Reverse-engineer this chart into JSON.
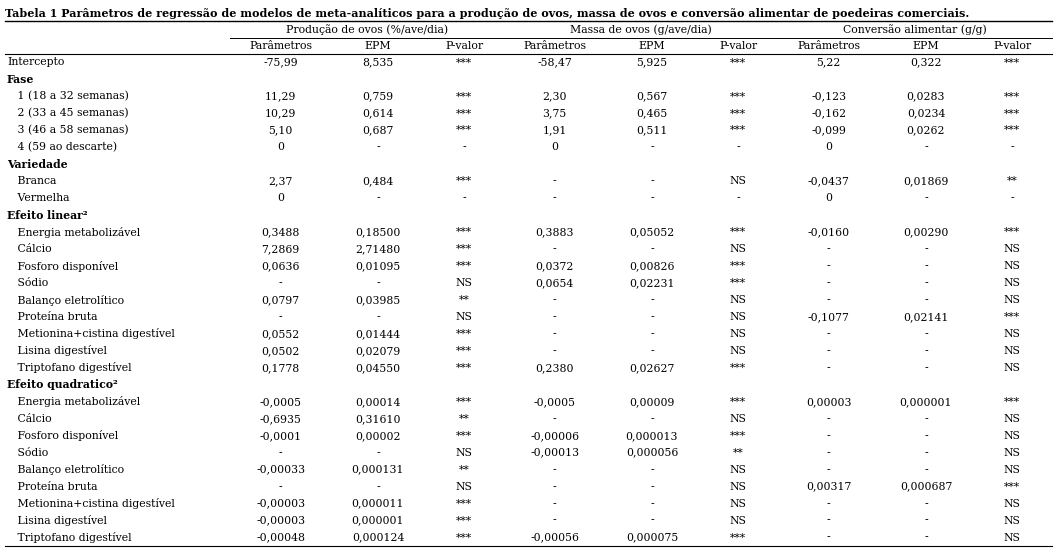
{
  "title": "Tabela 1 Parâmetros de regressão de modelos de meta-analíticos para a produção de ovos, massa de ovos e conversão alimentar de poedeiras comerciais.",
  "col_groups": [
    {
      "label": "Produção de ovos (%/ave/dia)"
    },
    {
      "label": "Massa de ovos (g/ave/dia)"
    },
    {
      "label": "Conversão alimentar (g/g)"
    }
  ],
  "sub_headers": [
    "Parâmetros",
    "EPM",
    "P-valor",
    "Parâmetros",
    "EPM",
    "P-valor",
    "Parâmetros",
    "EPM",
    "P-valor"
  ],
  "rows": [
    {
      "label": "Intercepto",
      "indent": 0,
      "values": [
        "-75,99",
        "8,535",
        "***",
        "-58,47",
        "5,925",
        "***",
        "5,22",
        "0,322",
        "***"
      ],
      "header": false
    },
    {
      "label": "Fase",
      "indent": 0,
      "values": [
        "",
        "",
        "",
        "",
        "",
        "",
        "",
        "",
        ""
      ],
      "header": true
    },
    {
      "label": "   1 (18 a 32 semanas)",
      "indent": 0,
      "values": [
        "11,29",
        "0,759",
        "***",
        "2,30",
        "0,567",
        "***",
        "-0,123",
        "0,0283",
        "***"
      ],
      "header": false
    },
    {
      "label": "   2 (33 a 45 semanas)",
      "indent": 0,
      "values": [
        "10,29",
        "0,614",
        "***",
        "3,75",
        "0,465",
        "***",
        "-0,162",
        "0,0234",
        "***"
      ],
      "header": false
    },
    {
      "label": "   3 (46 a 58 semanas)",
      "indent": 0,
      "values": [
        "5,10",
        "0,687",
        "***",
        "1,91",
        "0,511",
        "***",
        "-0,099",
        "0,0262",
        "***"
      ],
      "header": false
    },
    {
      "label": "   4 (59 ao descarte)",
      "indent": 0,
      "values": [
        "0",
        "-",
        "-",
        "0",
        "-",
        "-",
        "0",
        "-",
        "-"
      ],
      "header": false
    },
    {
      "label": "Variedade",
      "indent": 0,
      "values": [
        "",
        "",
        "",
        "",
        "",
        "",
        "",
        "",
        ""
      ],
      "header": true
    },
    {
      "label": "   Branca",
      "indent": 0,
      "values": [
        "2,37",
        "0,484",
        "***",
        "-",
        "-",
        "NS",
        "-0,0437",
        "0,01869",
        "**"
      ],
      "header": false
    },
    {
      "label": "   Vermelha",
      "indent": 0,
      "values": [
        "0",
        "-",
        "-",
        "-",
        "-",
        "-",
        "0",
        "-",
        "-"
      ],
      "header": false
    },
    {
      "label": "Efeito linear²",
      "indent": 0,
      "values": [
        "",
        "",
        "",
        "",
        "",
        "",
        "",
        "",
        ""
      ],
      "header": true
    },
    {
      "label": "   Energia metabolizável",
      "indent": 0,
      "values": [
        "0,3488",
        "0,18500",
        "***",
        "0,3883",
        "0,05052",
        "***",
        "-0,0160",
        "0,00290",
        "***"
      ],
      "header": false
    },
    {
      "label": "   Cálcio",
      "indent": 0,
      "values": [
        "7,2869",
        "2,71480",
        "***",
        "-",
        "-",
        "NS",
        "-",
        "-",
        "NS"
      ],
      "header": false
    },
    {
      "label": "   Fosforo disponível",
      "indent": 0,
      "values": [
        "0,0636",
        "0,01095",
        "***",
        "0,0372",
        "0,00826",
        "***",
        "-",
        "-",
        "NS"
      ],
      "header": false
    },
    {
      "label": "   Sódio",
      "indent": 0,
      "values": [
        "-",
        "-",
        "NS",
        "0,0654",
        "0,02231",
        "***",
        "-",
        "-",
        "NS"
      ],
      "header": false
    },
    {
      "label": "   Balanço eletrolítico",
      "indent": 0,
      "values": [
        "0,0797",
        "0,03985",
        "**",
        "-",
        "-",
        "NS",
        "-",
        "-",
        "NS"
      ],
      "header": false
    },
    {
      "label": "   Proteína bruta",
      "indent": 0,
      "values": [
        "-",
        "-",
        "NS",
        "-",
        "-",
        "NS",
        "-0,1077",
        "0,02141",
        "***"
      ],
      "header": false
    },
    {
      "label": "   Metionina+cistina digestível",
      "indent": 0,
      "values": [
        "0,0552",
        "0,01444",
        "***",
        "-",
        "-",
        "NS",
        "-",
        "-",
        "NS"
      ],
      "header": false
    },
    {
      "label": "   Lisina digestível",
      "indent": 0,
      "values": [
        "0,0502",
        "0,02079",
        "***",
        "-",
        "-",
        "NS",
        "-",
        "-",
        "NS"
      ],
      "header": false
    },
    {
      "label": "   Triptofano digestível",
      "indent": 0,
      "values": [
        "0,1778",
        "0,04550",
        "***",
        "0,2380",
        "0,02627",
        "***",
        "-",
        "-",
        "NS"
      ],
      "header": false
    },
    {
      "label": "Efeito quadratico²",
      "indent": 0,
      "values": [
        "",
        "",
        "",
        "",
        "",
        "",
        "",
        "",
        ""
      ],
      "header": true
    },
    {
      "label": "   Energia metabolizável",
      "indent": 0,
      "values": [
        "-0,0005",
        "0,00014",
        "***",
        "-0,0005",
        "0,00009",
        "***",
        "0,00003",
        "0,000001",
        "***"
      ],
      "header": false
    },
    {
      "label": "   Cálcio",
      "indent": 0,
      "values": [
        "-0,6935",
        "0,31610",
        "**",
        "-",
        "-",
        "NS",
        "-",
        "-",
        "NS"
      ],
      "header": false
    },
    {
      "label": "   Fosforo disponível",
      "indent": 0,
      "values": [
        "-0,0001",
        "0,00002",
        "***",
        "-0,00006",
        "0,000013",
        "***",
        "-",
        "-",
        "NS"
      ],
      "header": false
    },
    {
      "label": "   Sódio",
      "indent": 0,
      "values": [
        "-",
        "-",
        "NS",
        "-0,00013",
        "0,000056",
        "**",
        "-",
        "-",
        "NS"
      ],
      "header": false
    },
    {
      "label": "   Balanço eletrolítico",
      "indent": 0,
      "values": [
        "-0,00033",
        "0,000131",
        "**",
        "-",
        "-",
        "NS",
        "-",
        "-",
        "NS"
      ],
      "header": false
    },
    {
      "label": "   Proteína bruta",
      "indent": 0,
      "values": [
        "-",
        "-",
        "NS",
        "-",
        "-",
        "NS",
        "0,00317",
        "0,000687",
        "***"
      ],
      "header": false
    },
    {
      "label": "   Metionina+cistina digestível",
      "indent": 0,
      "values": [
        "-0,00003",
        "0,000011",
        "***",
        "-",
        "-",
        "NS",
        "-",
        "-",
        "NS"
      ],
      "header": false
    },
    {
      "label": "   Lisina digestível",
      "indent": 0,
      "values": [
        "-0,00003",
        "0,000001",
        "***",
        "-",
        "-",
        "NS",
        "-",
        "-",
        "NS"
      ],
      "header": false
    },
    {
      "label": "   Triptofano digestível",
      "indent": 0,
      "values": [
        "-0,00048",
        "0,000124",
        "***",
        "-0,00056",
        "0,000075",
        "***",
        "-",
        "-",
        "NS"
      ],
      "header": false
    }
  ],
  "bg_color": "#ffffff",
  "font_size": 7.8,
  "title_font_size": 8.0
}
